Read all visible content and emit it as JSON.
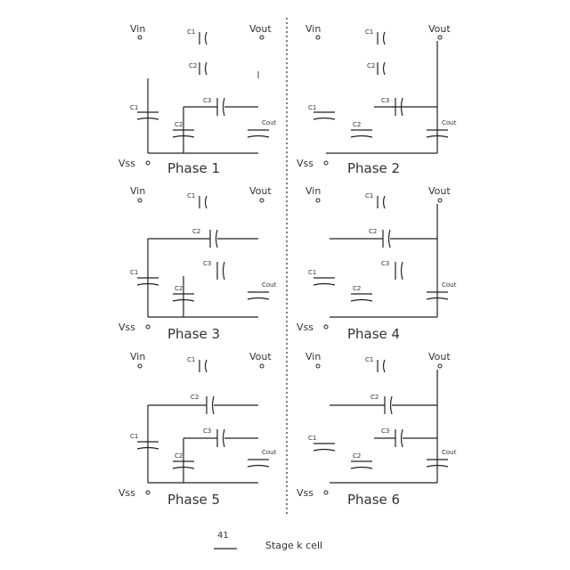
{
  "pins": {
    "vin": "Vin",
    "vout": "Vout",
    "vss": "Vss"
  },
  "caps": {
    "c1": "C1",
    "c2": "C2",
    "c3": "C3",
    "cout": "Cout"
  },
  "phases": [
    {
      "label": "Phase 1"
    },
    {
      "label": "Phase 2"
    },
    {
      "label": "Phase 3"
    },
    {
      "label": "Phase 4"
    },
    {
      "label": "Phase 5"
    },
    {
      "label": "Phase 6"
    }
  ],
  "footer": {
    "figure": "41",
    "caption": "Stage k cell"
  }
}
